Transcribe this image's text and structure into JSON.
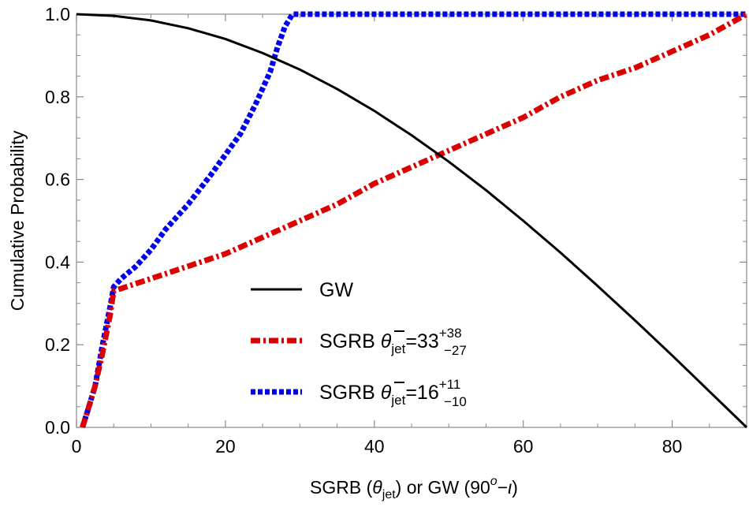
{
  "chart_data": {
    "type": "line",
    "xlabel": {
      "prefix": "SGRB (",
      "theta": "θ",
      "jet": "jet",
      "mid": ") or GW (90",
      "deg": "o",
      "minus": "−",
      "iota": "ι",
      "suffix": ")"
    },
    "ylabel": "Cumulative Probability",
    "xlim": [
      0,
      90
    ],
    "ylim": [
      0,
      1
    ],
    "xticks": [
      0,
      20,
      40,
      60,
      80
    ],
    "xtick_labels": [
      "0",
      "20",
      "40",
      "60",
      "80"
    ],
    "yticks": [
      0,
      0.2,
      0.4,
      0.6,
      0.8,
      1.0
    ],
    "ytick_labels": [
      "0.0",
      "0.2",
      "0.4",
      "0.6",
      "0.8",
      "1.0"
    ],
    "series": [
      {
        "name": "GW",
        "color": "#000000",
        "style": "solid",
        "points": [
          [
            0,
            1.0
          ],
          [
            5,
            0.996
          ],
          [
            10,
            0.985
          ],
          [
            15,
            0.966
          ],
          [
            20,
            0.94
          ],
          [
            25,
            0.906
          ],
          [
            30,
            0.866
          ],
          [
            35,
            0.819
          ],
          [
            40,
            0.766
          ],
          [
            45,
            0.707
          ],
          [
            50,
            0.643
          ],
          [
            55,
            0.574
          ],
          [
            60,
            0.5
          ],
          [
            65,
            0.423
          ],
          [
            70,
            0.342
          ],
          [
            75,
            0.259
          ],
          [
            80,
            0.174
          ],
          [
            85,
            0.087
          ],
          [
            90,
            0.0
          ]
        ]
      },
      {
        "name": "SGRB θjet=33",
        "color": "#dd0000",
        "style": "dashdot",
        "points": [
          [
            0.8,
            0.0
          ],
          [
            1.5,
            0.04
          ],
          [
            2.5,
            0.1
          ],
          [
            3.5,
            0.18
          ],
          [
            4.5,
            0.27
          ],
          [
            5,
            0.33
          ],
          [
            10,
            0.36
          ],
          [
            15,
            0.39
          ],
          [
            20,
            0.42
          ],
          [
            25,
            0.46
          ],
          [
            30,
            0.5
          ],
          [
            35,
            0.54
          ],
          [
            40,
            0.59
          ],
          [
            45,
            0.63
          ],
          [
            50,
            0.67
          ],
          [
            55,
            0.71
          ],
          [
            60,
            0.75
          ],
          [
            65,
            0.8
          ],
          [
            70,
            0.84
          ],
          [
            75,
            0.87
          ],
          [
            80,
            0.91
          ],
          [
            85,
            0.95
          ],
          [
            90,
            1.0
          ]
        ]
      },
      {
        "name": "SGRB θjet=16",
        "color": "#0000ee",
        "style": "dotted",
        "points": [
          [
            0.8,
            0.0
          ],
          [
            1.5,
            0.04
          ],
          [
            2.5,
            0.1
          ],
          [
            3.5,
            0.2
          ],
          [
            4.5,
            0.29
          ],
          [
            5,
            0.34
          ],
          [
            6,
            0.36
          ],
          [
            8,
            0.39
          ],
          [
            10,
            0.43
          ],
          [
            12,
            0.48
          ],
          [
            15,
            0.54
          ],
          [
            18,
            0.61
          ],
          [
            20,
            0.66
          ],
          [
            22,
            0.71
          ],
          [
            24,
            0.78
          ],
          [
            26,
            0.86
          ],
          [
            27,
            0.92
          ],
          [
            28,
            0.97
          ],
          [
            29,
            1.0
          ],
          [
            35,
            1.0
          ],
          [
            45,
            1.0
          ],
          [
            60,
            1.0
          ],
          [
            75,
            1.0
          ],
          [
            90,
            1.0
          ]
        ]
      }
    ],
    "legend": {
      "placement": "center-left",
      "entries": [
        {
          "base": "GW"
        },
        {
          "base": "SGRB ",
          "theta": "θ",
          "sub": "jet",
          "eq": "=33",
          "sup": "+38",
          "low": "−27"
        },
        {
          "base": "SGRB ",
          "theta": "θ",
          "sub": "jet",
          "eq": "=16",
          "sup": "+11",
          "low": "−10"
        }
      ]
    }
  }
}
